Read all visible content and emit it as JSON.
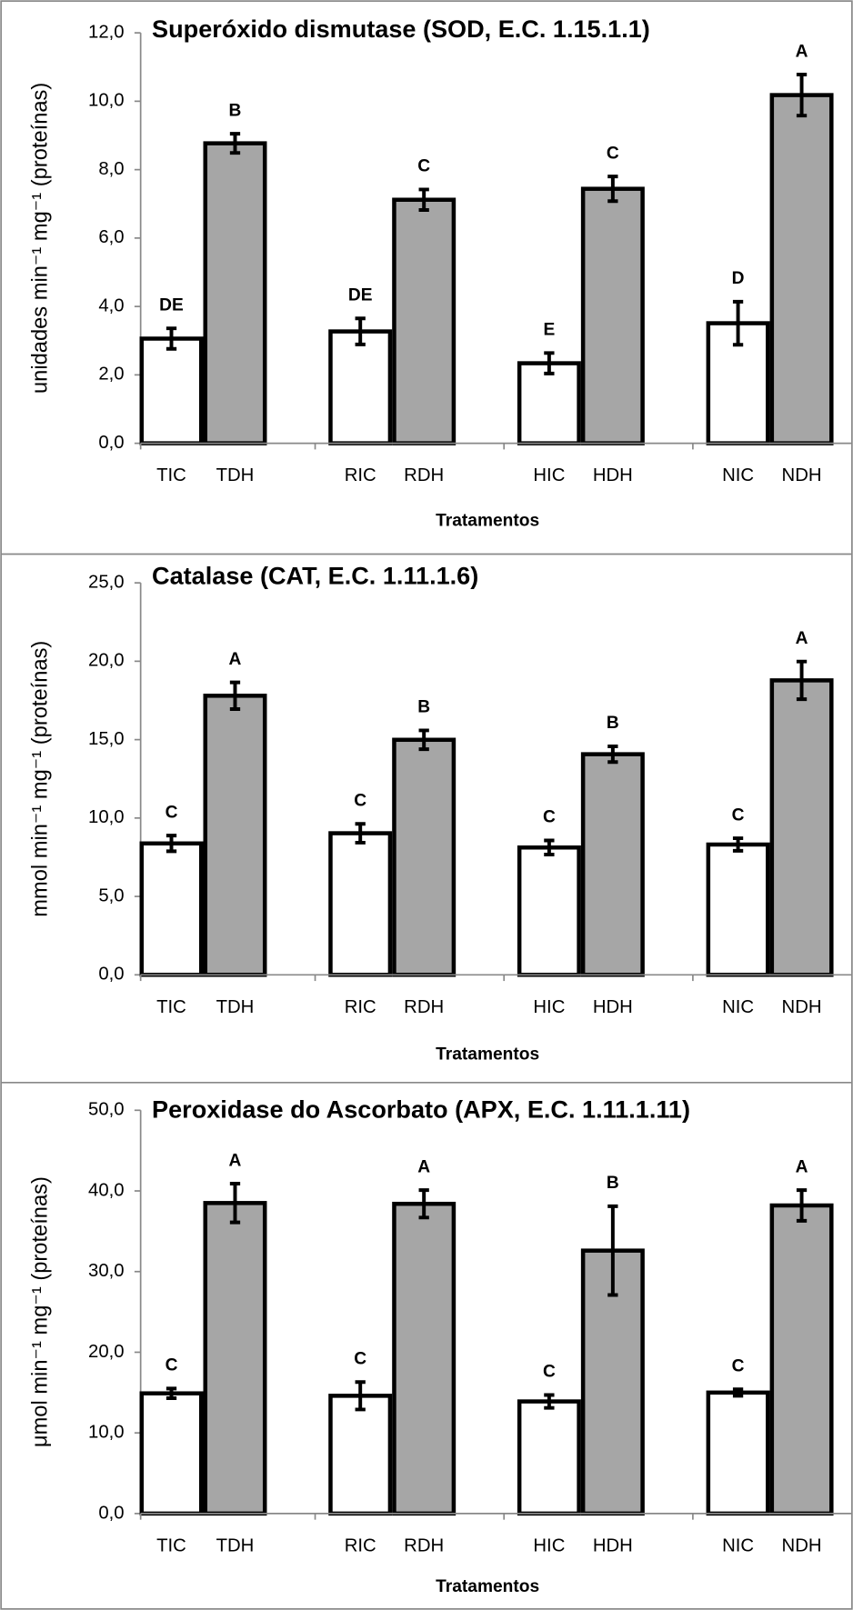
{
  "chart_data": [
    {
      "type": "bar",
      "title": "Superóxido dismutase (SOD, E.C. 1.15.1.1)",
      "y_label": "unidades min⁻¹ mg⁻¹ (proteínas)",
      "x_label": "Tratamentos",
      "categories": [
        "TIC",
        "TDH",
        "RIC",
        "RDH",
        "HIC",
        "HDH",
        "NIC",
        "NDH"
      ],
      "values": [
        3.06,
        8.77,
        3.27,
        7.12,
        2.34,
        7.44,
        3.51,
        10.18
      ],
      "errors": [
        0.3,
        0.28,
        0.38,
        0.3,
        0.3,
        0.36,
        0.63,
        0.6
      ],
      "value_labels": [
        "DE",
        "B",
        "DE",
        "C",
        "E",
        "C",
        "D",
        "A"
      ],
      "bar_colors": [
        "#ffffff",
        "#a6a6a6"
      ],
      "ylim": [
        0,
        12
      ],
      "yticks": [
        {
          "value": 0,
          "label": "0,0"
        },
        {
          "value": 2,
          "label": "2,0"
        },
        {
          "value": 4,
          "label": "4,0"
        },
        {
          "value": 6,
          "label": "6,0"
        },
        {
          "value": 8,
          "label": "8,0"
        },
        {
          "value": 10,
          "label": "10,0"
        },
        {
          "value": 12,
          "label": "12,0"
        }
      ]
    },
    {
      "type": "bar",
      "title": "Catalase (CAT, E.C. 1.11.1.6)",
      "y_label": "mmol min⁻¹ mg⁻¹ (proteínas)",
      "x_label": "Tratamentos",
      "categories": [
        "TIC",
        "TDH",
        "RIC",
        "RDH",
        "HIC",
        "HDH",
        "NIC",
        "NDH"
      ],
      "values": [
        8.38,
        17.8,
        9.03,
        14.99,
        8.12,
        14.07,
        8.31,
        18.78
      ],
      "errors": [
        0.5,
        0.85,
        0.6,
        0.6,
        0.45,
        0.5,
        0.4,
        1.2
      ],
      "value_labels": [
        "C",
        "A",
        "C",
        "B",
        "C",
        "B",
        "C",
        "A"
      ],
      "bar_colors": [
        "#ffffff",
        "#a6a6a6"
      ],
      "ylim": [
        0,
        25
      ],
      "yticks": [
        {
          "value": 0,
          "label": "0,0"
        },
        {
          "value": 5,
          "label": "5,0"
        },
        {
          "value": 10,
          "label": "10,0"
        },
        {
          "value": 15,
          "label": "15,0"
        },
        {
          "value": 20,
          "label": "20,0"
        },
        {
          "value": 25,
          "label": "25,0"
        }
      ]
    },
    {
      "type": "bar",
      "title": "Peroxidase do Ascorbato (APX, E.C. 1.11.1.11)",
      "y_label": "μmol min⁻¹ mg⁻¹ (proteínas)",
      "x_label": "Tratamentos",
      "categories": [
        "TIC",
        "TDH",
        "RIC",
        "RDH",
        "HIC",
        "HDH",
        "NIC",
        "NDH"
      ],
      "values": [
        14.9,
        38.5,
        14.6,
        38.4,
        13.9,
        32.6,
        15.0,
        38.2
      ],
      "errors": [
        0.6,
        2.4,
        1.7,
        1.7,
        0.8,
        5.5,
        0.4,
        1.9
      ],
      "value_labels": [
        "C",
        "A",
        "C",
        "A",
        "C",
        "B",
        "C",
        "A"
      ],
      "bar_colors": [
        "#ffffff",
        "#a6a6a6"
      ],
      "ylim": [
        0,
        50
      ],
      "yticks": [
        {
          "value": 0,
          "label": "0,0"
        },
        {
          "value": 10,
          "label": "10,0"
        },
        {
          "value": 20,
          "label": "20,0"
        },
        {
          "value": 30,
          "label": "30,0"
        },
        {
          "value": 40,
          "label": "40,0"
        },
        {
          "value": 50,
          "label": "50,0"
        }
      ]
    }
  ]
}
